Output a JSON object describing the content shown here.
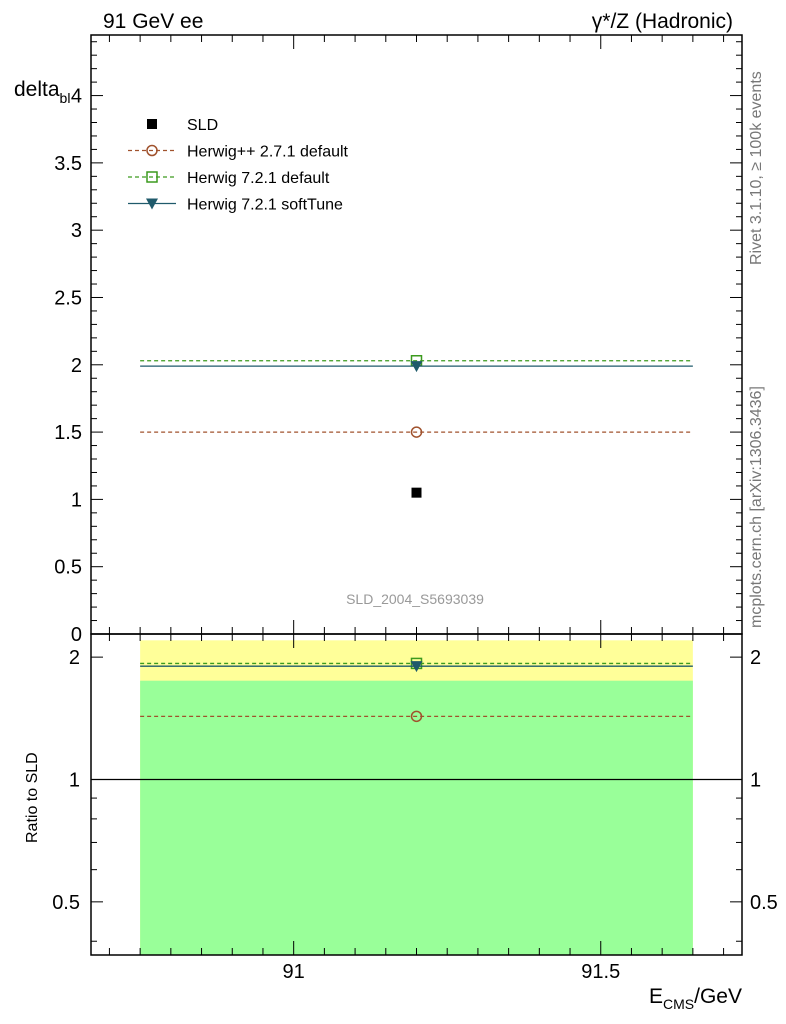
{
  "header": {
    "left": "91 GeV ee",
    "right": "γ*/Z (Hadronic)"
  },
  "side_labels": {
    "rivet": "Rivet 3.1.10, ≥ 100k events",
    "mcplots": "mcplots.cern.ch [arXiv:1306.3436]"
  },
  "analysis_id": "SLD_2004_S5693039",
  "colors": {
    "data": "#000000",
    "herwigpp": "#a0522d",
    "herwig721": "#3c9a1e",
    "softtune": "#1f5a6b",
    "band_outer": "#ffff99",
    "band_inner": "#99ff99"
  },
  "chart_data": [
    {
      "type": "scatter",
      "panel": "main",
      "ylabel_main": "delta",
      "ylabel_sub": "bl",
      "xlim": [
        90.67,
        91.73
      ],
      "ylim": [
        0,
        4.45
      ],
      "yticks": [
        "0",
        "0.5",
        "1",
        "1.5",
        "2",
        "2.5",
        "3",
        "3.5",
        "4"
      ],
      "legend_position": "top-left",
      "series": [
        {
          "name": "SLD",
          "marker": "square-filled",
          "style": "points",
          "x": [
            91.2
          ],
          "y": [
            1.05
          ]
        },
        {
          "name": "Herwig++ 2.7.1 default",
          "marker": "circle-open",
          "style": "dashed",
          "x": [
            91.2
          ],
          "y": [
            1.5
          ]
        },
        {
          "name": "Herwig 7.2.1 default",
          "marker": "square-open",
          "style": "dashed",
          "x": [
            91.2
          ],
          "y": [
            2.03
          ]
        },
        {
          "name": "Herwig 7.2.1 softTune",
          "marker": "triangle-down-filled",
          "style": "solid",
          "x": [
            91.2
          ],
          "y": [
            1.99
          ]
        }
      ]
    },
    {
      "type": "scatter",
      "panel": "ratio",
      "ylabel": "Ratio to SLD",
      "xlabel_main": "E",
      "xlabel_sub": "CMS",
      "xlabel_tail": "/GeV",
      "xlim": [
        90.67,
        91.73
      ],
      "ylim": [
        0.37,
        2.28
      ],
      "yscale": "log",
      "yticks": [
        "0.5",
        "1",
        "2"
      ],
      "xticks": [
        "91",
        "91.5"
      ],
      "bands": {
        "outer": [
          0.37,
          2.2
        ],
        "inner": [
          0.37,
          1.75
        ]
      },
      "reference": 1,
      "series": [
        {
          "name": "Herwig++ 2.7.1 default",
          "x": [
            91.2
          ],
          "y": [
            1.43
          ]
        },
        {
          "name": "Herwig 7.2.1 default",
          "x": [
            91.2
          ],
          "y": [
            1.93
          ]
        },
        {
          "name": "Herwig 7.2.1 softTune",
          "x": [
            91.2
          ],
          "y": [
            1.9
          ]
        }
      ]
    }
  ]
}
